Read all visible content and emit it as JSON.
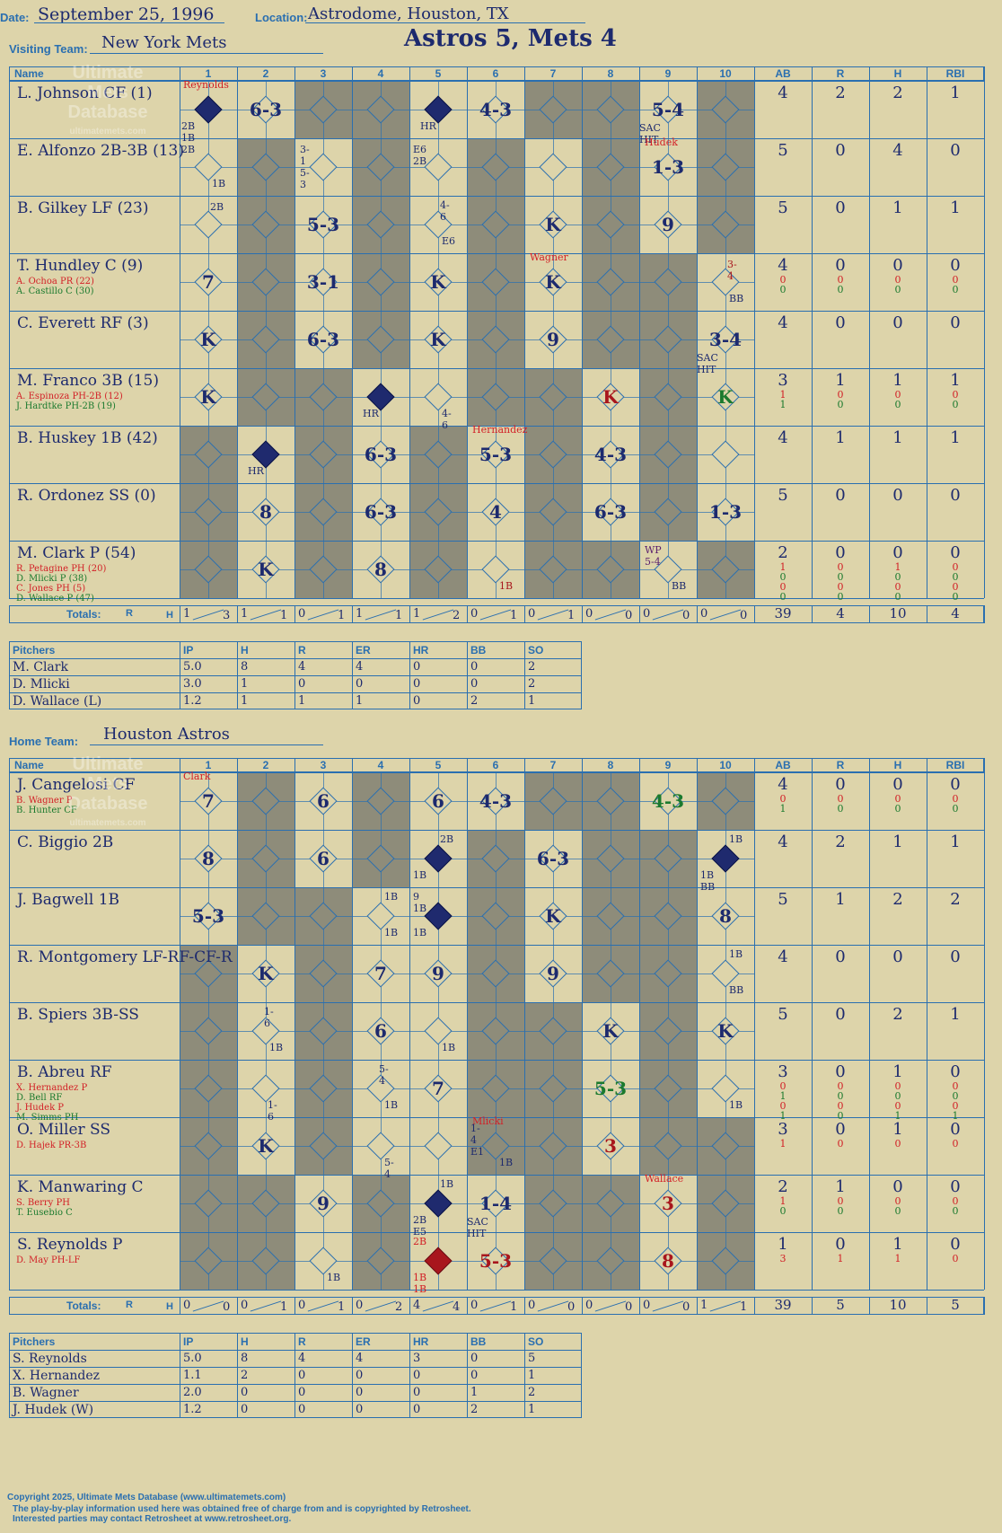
{
  "header": {
    "date_label": "Date:",
    "date": "September 25, 1996",
    "location_label": "Location:",
    "location": "Astrodome, Houston, TX",
    "title": "Astros 5, Mets 4",
    "visiting_label": "Visiting Team:",
    "visiting_team": "New York Mets",
    "home_label": "Home Team:",
    "home_team": "Houston Astros"
  },
  "watermark": [
    "Ultimate",
    "Mets",
    "Database",
    "ultimatemets.com"
  ],
  "columns": {
    "name": "Name",
    "innings": [
      "1",
      "2",
      "3",
      "4",
      "5",
      "6",
      "7",
      "8",
      "9",
      "10"
    ],
    "stats": [
      "AB",
      "R",
      "H",
      "RBI"
    ],
    "totals_label": "Totals:",
    "r": "R",
    "h": "H"
  },
  "visiting": {
    "players": [
      {
        "name": "L. Johnson CF (1)",
        "subs": [],
        "ab": "4",
        "r": "2",
        "h": "2",
        "rbi": "1",
        "sub_stats": []
      },
      {
        "name": "E. Alfonzo 2B-3B (13)",
        "subs": [],
        "ab": "5",
        "r": "0",
        "h": "4",
        "rbi": "0",
        "sub_stats": []
      },
      {
        "name": "B. Gilkey LF (23)",
        "subs": [],
        "ab": "5",
        "r": "0",
        "h": "1",
        "rbi": "1",
        "sub_stats": []
      },
      {
        "name": "T. Hundley C (9)",
        "subs": [
          "A. Ochoa PR (22)",
          "A. Castillo C (30)"
        ],
        "ab": "4",
        "r": "0",
        "h": "0",
        "rbi": "0",
        "sub_stats": [
          [
            "0",
            "0",
            "0",
            "0"
          ],
          [
            "0",
            "0",
            "0",
            "0"
          ]
        ]
      },
      {
        "name": "C. Everett RF (3)",
        "subs": [],
        "ab": "4",
        "r": "0",
        "h": "0",
        "rbi": "0",
        "sub_stats": []
      },
      {
        "name": "M. Franco 3B (15)",
        "subs": [
          "A. Espinoza PH-2B (12)",
          "J. Hardtke PH-2B (19)"
        ],
        "ab": "3",
        "r": "1",
        "h": "1",
        "rbi": "1",
        "sub_stats": [
          [
            "1",
            "0",
            "0",
            "0"
          ],
          [
            "1",
            "0",
            "0",
            "0"
          ]
        ]
      },
      {
        "name": "B. Huskey 1B (42)",
        "subs": [],
        "ab": "4",
        "r": "1",
        "h": "1",
        "rbi": "1",
        "sub_stats": []
      },
      {
        "name": "R. Ordonez SS (0)",
        "subs": [],
        "ab": "5",
        "r": "0",
        "h": "0",
        "rbi": "0",
        "sub_stats": []
      },
      {
        "name": "M. Clark P (54)",
        "subs": [
          "R. Petagine PH (20)",
          "D. Mlicki P (38)",
          "C. Jones PH (5)",
          "D. Wallace P (47)"
        ],
        "ab": "2",
        "r": "0",
        "h": "0",
        "rbi": "0",
        "sub_stats": [
          [
            "1",
            "0",
            "1",
            "0"
          ],
          [
            "0",
            "0",
            "0",
            "0"
          ],
          [
            "0",
            "0",
            "0",
            "0"
          ],
          [
            "0",
            "0",
            "0",
            "0"
          ]
        ]
      }
    ],
    "totals": {
      "innings": [
        [
          "1",
          "3"
        ],
        [
          "1",
          "1"
        ],
        [
          "0",
          "1"
        ],
        [
          "1",
          "1"
        ],
        [
          "1",
          "2"
        ],
        [
          "0",
          "1"
        ],
        [
          "0",
          "1"
        ],
        [
          "0",
          "0"
        ],
        [
          "0",
          "0"
        ],
        [
          "0",
          "0"
        ]
      ],
      "ab": "39",
      "r": "4",
      "h": "10",
      "rbi": "4"
    },
    "pitcher_headers": [
      "Pitchers",
      "IP",
      "H",
      "R",
      "ER",
      "HR",
      "BB",
      "SO"
    ],
    "pitchers": [
      [
        "M. Clark",
        "5.0",
        "8",
        "4",
        "4",
        "0",
        "0",
        "2"
      ],
      [
        "D. Mlicki",
        "3.0",
        "1",
        "0",
        "0",
        "0",
        "0",
        "2"
      ],
      [
        "D. Wallace (L)",
        "1.2",
        "1",
        "1",
        "1",
        "0",
        "2",
        "1"
      ]
    ]
  },
  "home": {
    "players": [
      {
        "name": "J. Cangelosi CF",
        "subs": [
          "B. Wagner P",
          "B. Hunter CF"
        ],
        "ab": "4",
        "r": "0",
        "h": "0",
        "rbi": "0",
        "sub_stats": [
          [
            "0",
            "0",
            "0",
            "0"
          ],
          [
            "1",
            "0",
            "0",
            "0"
          ]
        ]
      },
      {
        "name": "C. Biggio 2B",
        "subs": [],
        "ab": "4",
        "r": "2",
        "h": "1",
        "rbi": "1",
        "sub_stats": []
      },
      {
        "name": "J. Bagwell 1B",
        "subs": [],
        "ab": "5",
        "r": "1",
        "h": "2",
        "rbi": "2",
        "sub_stats": []
      },
      {
        "name": "R. Montgomery LF-RF-CF-R",
        "subs": [],
        "ab": "4",
        "r": "0",
        "h": "0",
        "rbi": "0",
        "sub_stats": []
      },
      {
        "name": "B. Spiers 3B-SS",
        "subs": [],
        "ab": "5",
        "r": "0",
        "h": "2",
        "rbi": "1",
        "sub_stats": []
      },
      {
        "name": "B. Abreu RF",
        "subs": [
          "X. Hernandez P",
          "D. Bell RF",
          "J. Hudek P",
          "M. Simms PH"
        ],
        "ab": "3",
        "r": "0",
        "h": "1",
        "rbi": "0",
        "sub_stats": [
          [
            "0",
            "0",
            "0",
            "0"
          ],
          [
            "1",
            "0",
            "0",
            "0"
          ],
          [
            "0",
            "0",
            "0",
            "0"
          ],
          [
            "1",
            "0",
            "1",
            "1"
          ]
        ]
      },
      {
        "name": "O. Miller SS",
        "subs": [
          "D. Hajek PR-3B"
        ],
        "ab": "3",
        "r": "0",
        "h": "1",
        "rbi": "0",
        "sub_stats": [
          [
            "1",
            "0",
            "0",
            "0"
          ]
        ]
      },
      {
        "name": "K. Manwaring C",
        "subs": [
          "S. Berry PH",
          "T. Eusebio C"
        ],
        "ab": "2",
        "r": "1",
        "h": "0",
        "rbi": "0",
        "sub_stats": [
          [
            "1",
            "0",
            "0",
            "0"
          ],
          [
            "0",
            "0",
            "0",
            "0"
          ]
        ]
      },
      {
        "name": "S. Reynolds P",
        "subs": [
          "D. May PH-LF"
        ],
        "ab": "1",
        "r": "0",
        "h": "1",
        "rbi": "0",
        "sub_stats": [
          [
            "3",
            "1",
            "1",
            "0"
          ]
        ]
      }
    ],
    "totals": {
      "innings": [
        [
          "0",
          "0"
        ],
        [
          "0",
          "1"
        ],
        [
          "0",
          "1"
        ],
        [
          "0",
          "2"
        ],
        [
          "4",
          "4"
        ],
        [
          "0",
          "1"
        ],
        [
          "0",
          "0"
        ],
        [
          "0",
          "0"
        ],
        [
          "0",
          "0"
        ],
        [
          "1",
          "1"
        ]
      ],
      "ab": "39",
      "r": "5",
      "h": "10",
      "rbi": "5"
    },
    "pitcher_headers": [
      "Pitchers",
      "IP",
      "H",
      "R",
      "ER",
      "HR",
      "BB",
      "SO"
    ],
    "pitchers": [
      [
        "S. Reynolds",
        "5.0",
        "8",
        "4",
        "4",
        "3",
        "0",
        "5"
      ],
      [
        "X. Hernandez",
        "1.1",
        "2",
        "0",
        "0",
        "0",
        "0",
        "1"
      ],
      [
        "B. Wagner",
        "2.0",
        "0",
        "0",
        "0",
        "0",
        "1",
        "2"
      ],
      [
        "J. Hudek (W)",
        "1.2",
        "0",
        "0",
        "0",
        "0",
        "2",
        "1"
      ]
    ]
  },
  "footer": [
    "Copyright 2025, Ultimate Mets Database (www.ultimatemets.com)",
    "The play-by-play information used here was obtained free of charge from and is copyrighted by Retrosheet.",
    "Interested parties may contact Retrosheet at www.retrosheet.org."
  ]
}
